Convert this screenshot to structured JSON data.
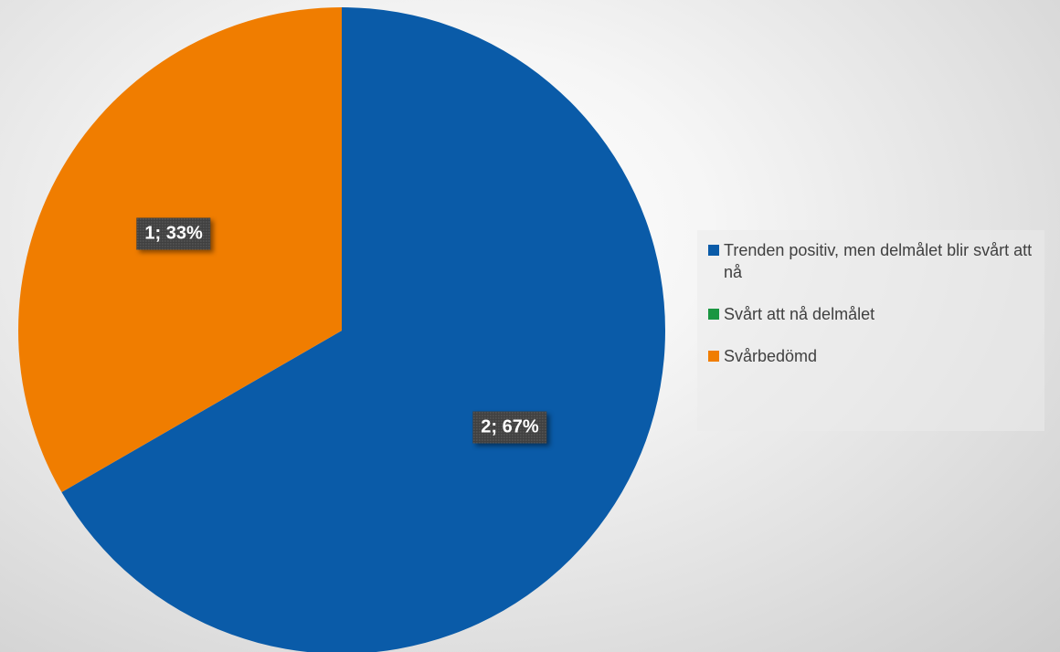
{
  "chart_data": {
    "type": "pie",
    "categories": [
      "Trenden positiv, men delmålet blir svårt att nå",
      "Svårt att nå delmålet",
      "Svårbedömd"
    ],
    "values": [
      2,
      0,
      1
    ],
    "percent_labels": [
      "67%",
      "0%",
      "33%"
    ],
    "colors": [
      "#0A5BA8",
      "#1A9641",
      "#F07D00"
    ],
    "data_labels": [
      "2; 67%",
      "",
      "1; 33%"
    ],
    "legend": [
      "Trenden positiv, men delmålet blir svårt att nå",
      "Svårt att nå delmålet",
      "Svårbedömd"
    ],
    "legend_position": "right"
  }
}
